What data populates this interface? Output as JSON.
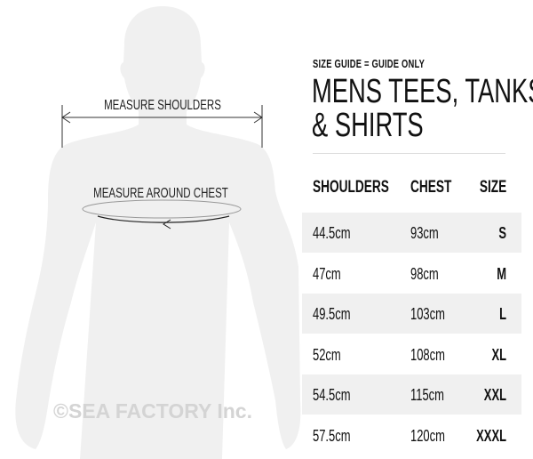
{
  "figure": {
    "shoulders_label": "MEASURE SHOULDERS",
    "chest_label": "MEASURE AROUND CHEST",
    "watermark": "©SEA FACTORY Inc.",
    "silhouette_color": "#f0f0f0"
  },
  "guide": {
    "kicker": "SIZE GUIDE = GUIDE ONLY",
    "title_line1": "MENS TEES, TANKS",
    "title_line2": "& SHIRTS"
  },
  "table": {
    "headers": [
      "SHOULDERS",
      "CHEST",
      "SIZE"
    ],
    "rows": [
      {
        "shoulders": "44.5cm",
        "chest": "93cm",
        "size": "S"
      },
      {
        "shoulders": "47cm",
        "chest": "98cm",
        "size": "M"
      },
      {
        "shoulders": "49.5cm",
        "chest": "103cm",
        "size": "L"
      },
      {
        "shoulders": "52cm",
        "chest": "108cm",
        "size": "XL"
      },
      {
        "shoulders": "54.5cm",
        "chest": "115cm",
        "size": "XXL"
      },
      {
        "shoulders": "57.5cm",
        "chest": "120cm",
        "size": "XXXL"
      }
    ]
  }
}
